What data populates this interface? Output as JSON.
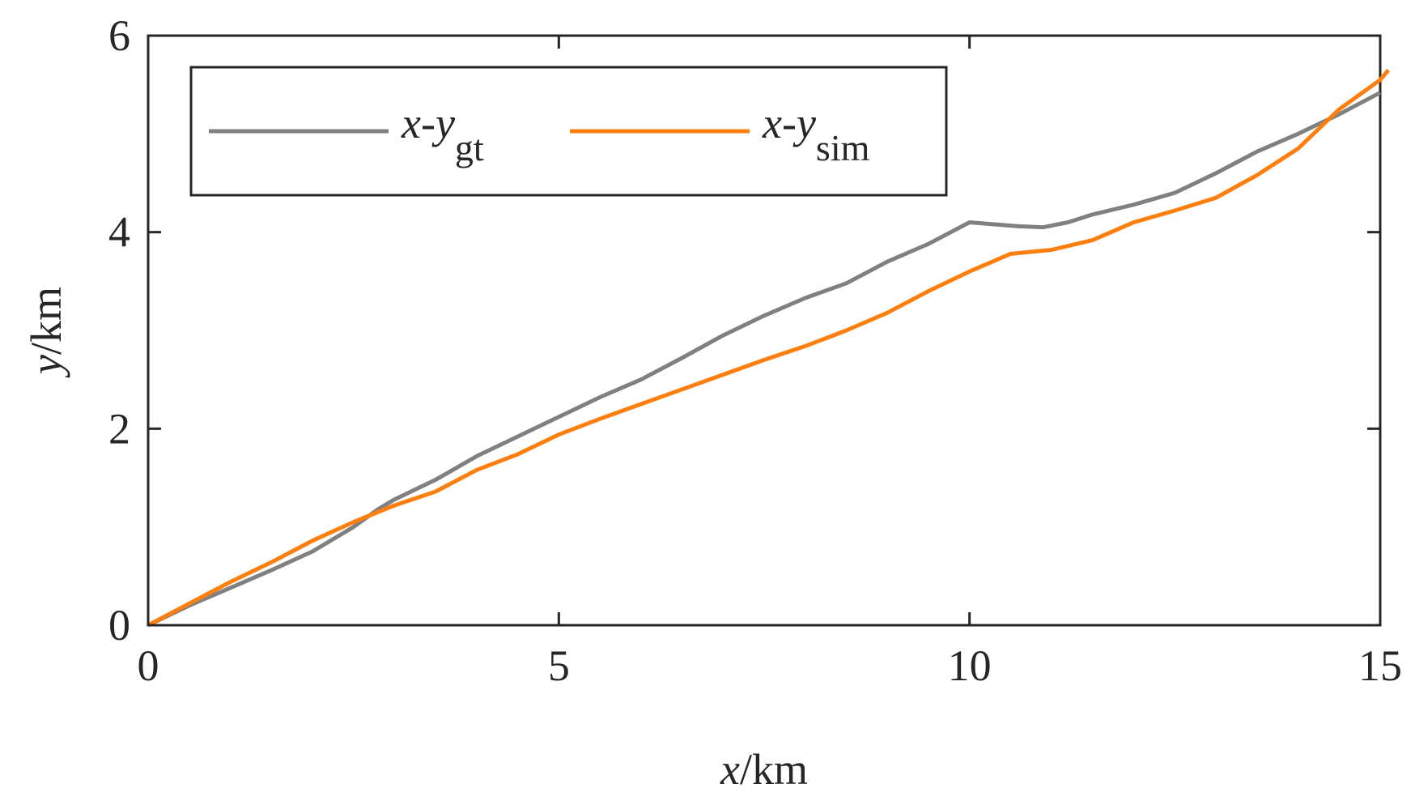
{
  "chart_data": {
    "type": "line",
    "xlabel": {
      "var": "x",
      "unit": "/km"
    },
    "ylabel": {
      "var": "y",
      "unit": "/km"
    },
    "xlim": [
      0,
      15
    ],
    "ylim": [
      0,
      6
    ],
    "xticks": [
      0,
      5,
      10,
      15
    ],
    "yticks": [
      0,
      2,
      4,
      6
    ],
    "xtick_labels": [
      "0",
      "5",
      "10",
      "15"
    ],
    "ytick_labels": [
      "0",
      "2",
      "4",
      "6"
    ],
    "grid": false,
    "legend_position": "top-left",
    "series": [
      {
        "name": "x-y",
        "name_sub": "gt",
        "color": "#808080",
        "x": [
          0,
          0.5,
          1.0,
          1.5,
          2.0,
          2.5,
          2.8,
          3.0,
          3.5,
          4.0,
          4.5,
          5.0,
          5.5,
          6.0,
          6.5,
          7.0,
          7.5,
          8.0,
          8.5,
          9.0,
          9.5,
          10.0,
          10.3,
          10.6,
          10.9,
          11.2,
          11.5,
          12.0,
          12.5,
          13.0,
          13.5,
          14.0,
          14.5,
          15.0
        ],
        "y": [
          0,
          0.2,
          0.38,
          0.56,
          0.75,
          1.0,
          1.18,
          1.28,
          1.48,
          1.72,
          1.92,
          2.12,
          2.32,
          2.5,
          2.72,
          2.95,
          3.15,
          3.33,
          3.48,
          3.7,
          3.88,
          4.1,
          4.08,
          4.06,
          4.05,
          4.1,
          4.18,
          4.28,
          4.4,
          4.6,
          4.82,
          5.0,
          5.2,
          5.42
        ]
      },
      {
        "name": "x-y",
        "name_sub": "sim",
        "color": "#FF7F0E",
        "x": [
          0,
          0.5,
          1.0,
          1.5,
          2.0,
          2.5,
          3.0,
          3.5,
          4.0,
          4.5,
          5.0,
          5.5,
          6.0,
          6.5,
          7.0,
          7.5,
          8.0,
          8.5,
          9.0,
          9.5,
          10.0,
          10.5,
          11.0,
          11.5,
          12.0,
          12.5,
          13.0,
          13.5,
          14.0,
          14.5,
          15.0,
          15.1
        ],
        "y": [
          0,
          0.22,
          0.44,
          0.64,
          0.86,
          1.05,
          1.22,
          1.36,
          1.58,
          1.74,
          1.94,
          2.1,
          2.25,
          2.4,
          2.55,
          2.7,
          2.84,
          3.0,
          3.18,
          3.4,
          3.6,
          3.78,
          3.82,
          3.92,
          4.1,
          4.22,
          4.35,
          4.58,
          4.85,
          5.25,
          5.55,
          5.65
        ]
      }
    ]
  }
}
